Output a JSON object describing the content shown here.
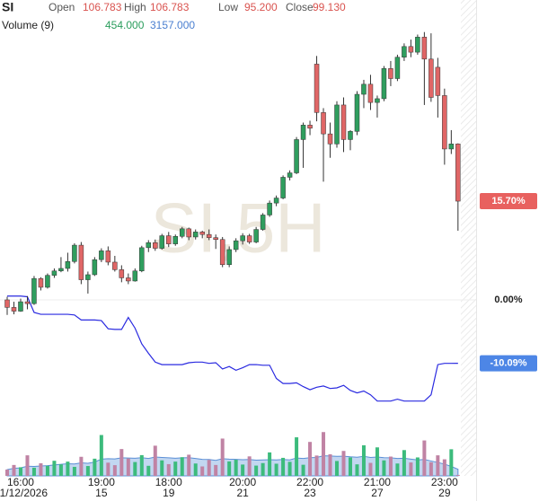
{
  "chart_data": {
    "type": "candlestick",
    "symbol": "SI",
    "watermark": "SI,5H",
    "quote": [
      {
        "name": "Open",
        "value": 106.783
      },
      {
        "name": "High",
        "value": 106.783
      },
      {
        "name": "Low",
        "value": 95.2,
        "label": "95.200"
      },
      {
        "name": "Close",
        "value": 99.13,
        "label": "99.130"
      }
    ],
    "volume_title": "Volume (9)",
    "categories": [
      null,
      null,
      "16:00",
      null,
      null,
      null,
      null,
      null,
      null,
      null,
      null,
      null,
      null,
      null,
      "19:00",
      null,
      null,
      null,
      null,
      null,
      null,
      null,
      null,
      null,
      "18:00",
      null,
      null,
      null,
      null,
      null,
      null,
      null,
      null,
      null,
      null,
      "20:00",
      null,
      null,
      null,
      null,
      null,
      null,
      null,
      null,
      null,
      "22:00",
      null,
      null,
      null,
      null,
      null,
      null,
      null,
      null,
      null,
      "21:00",
      null,
      null,
      null,
      null,
      null,
      null,
      null,
      null,
      null,
      "23:00",
      null,
      null
    ],
    "dates": [
      null,
      null,
      "01/12/2026",
      null,
      null,
      null,
      null,
      null,
      null,
      null,
      null,
      null,
      null,
      null,
      "15",
      null,
      null,
      null,
      null,
      null,
      null,
      null,
      null,
      null,
      "19",
      null,
      null,
      null,
      null,
      null,
      null,
      null,
      null,
      null,
      null,
      "21",
      null,
      null,
      null,
      null,
      null,
      null,
      null,
      null,
      null,
      "23",
      null,
      null,
      null,
      null,
      null,
      null,
      null,
      null,
      null,
      "27",
      null,
      null,
      null,
      null,
      null,
      null,
      null,
      null,
      null,
      "29",
      null,
      null
    ],
    "candles": [
      [
        0,
        0.5,
        -2.4,
        -1.2
      ],
      [
        -1.2,
        -0.3,
        -2.3,
        -1.8
      ],
      [
        -1.8,
        0.2,
        -1.9,
        -0.3
      ],
      [
        -0.3,
        0.6,
        -1.5,
        -0.6
      ],
      [
        -0.6,
        3.8,
        -0.8,
        3.4
      ],
      [
        3.4,
        3.6,
        1.5,
        2.0
      ],
      [
        2.0,
        4.2,
        1.8,
        3.9
      ],
      [
        3.9,
        5.0,
        3.5,
        4.6
      ],
      [
        4.6,
        6.8,
        4.4,
        5.0
      ],
      [
        5.0,
        7.5,
        4.5,
        6.1
      ],
      [
        6.1,
        9.0,
        5.8,
        8.7
      ],
      [
        8.7,
        9.2,
        2.5,
        3.2
      ],
      [
        3.2,
        4.5,
        1.0,
        4.0
      ],
      [
        4.0,
        6.8,
        3.8,
        6.4
      ],
      [
        6.4,
        8.2,
        6.0,
        7.8
      ],
      [
        7.8,
        8.5,
        5.5,
        6.0
      ],
      [
        6.0,
        7.0,
        4.5,
        4.8
      ],
      [
        4.8,
        5.5,
        2.8,
        3.5
      ],
      [
        3.5,
        4.2,
        2.5,
        3.0
      ],
      [
        3.0,
        5.0,
        2.9,
        4.6
      ],
      [
        4.6,
        8.6,
        4.4,
        8.3
      ],
      [
        8.3,
        9.5,
        7.6,
        9.1
      ],
      [
        9.1,
        9.6,
        7.8,
        8.2
      ],
      [
        8.2,
        10.5,
        8.0,
        10.2
      ],
      [
        10.2,
        10.8,
        8.4,
        8.9
      ],
      [
        8.9,
        10.4,
        8.6,
        10.1
      ],
      [
        10.1,
        11.6,
        9.8,
        11.3
      ],
      [
        11.3,
        11.5,
        9.5,
        10.0
      ],
      [
        10.0,
        11.2,
        9.6,
        10.8
      ],
      [
        10.8,
        11.0,
        9.8,
        10.4
      ],
      [
        10.4,
        11.2,
        9.5,
        9.9
      ],
      [
        9.9,
        10.4,
        8.1,
        9.6
      ],
      [
        9.6,
        10.0,
        5.2,
        5.6
      ],
      [
        5.6,
        8.5,
        5.2,
        8.0
      ],
      [
        8.0,
        9.8,
        7.6,
        9.4
      ],
      [
        9.4,
        10.6,
        8.8,
        10.2
      ],
      [
        10.2,
        10.5,
        8.9,
        9.2
      ],
      [
        9.2,
        11.6,
        9.0,
        11.2
      ],
      [
        11.2,
        13.8,
        11.0,
        13.5
      ],
      [
        13.5,
        15.8,
        13.2,
        15.4
      ],
      [
        15.4,
        16.6,
        14.9,
        16.2
      ],
      [
        16.2,
        19.8,
        16.0,
        19.5
      ],
      [
        19.5,
        20.6,
        19.0,
        20.2
      ],
      [
        20.2,
        25.9,
        20.0,
        25.5
      ],
      [
        25.5,
        28.2,
        21.0,
        27.8
      ],
      [
        27.8,
        28.5,
        26.2,
        27.3
      ],
      [
        37.5,
        38.8,
        28.4,
        29.8
      ],
      [
        29.8,
        30.5,
        18.8,
        26.4
      ],
      [
        26.4,
        28.2,
        22.6,
        24.8
      ],
      [
        24.8,
        31.6,
        24.2,
        31.0
      ],
      [
        31.0,
        32.2,
        23.5,
        25.5
      ],
      [
        25.5,
        27.0,
        23.8,
        26.8
      ],
      [
        26.8,
        33.2,
        26.2,
        32.7
      ],
      [
        32.7,
        35.0,
        30.5,
        34.3
      ],
      [
        34.3,
        35.8,
        30.2,
        31.4
      ],
      [
        31.4,
        32.5,
        29.0,
        32.0
      ],
      [
        32.0,
        37.2,
        31.6,
        36.8
      ],
      [
        36.8,
        38.0,
        34.0,
        35.2
      ],
      [
        35.2,
        39.0,
        34.8,
        38.6
      ],
      [
        38.6,
        40.8,
        38.0,
        40.3
      ],
      [
        40.3,
        41.4,
        38.6,
        39.4
      ],
      [
        39.4,
        42.2,
        39.0,
        41.8
      ],
      [
        41.8,
        42.6,
        31.0,
        38.3
      ],
      [
        38.3,
        42.4,
        31.5,
        32.2
      ],
      [
        37.0,
        38.5,
        29.0,
        32.5
      ],
      [
        32.5,
        33.6,
        21.5,
        24.0
      ],
      [
        24.0,
        27.0,
        23.2,
        24.8
      ],
      [
        24.8,
        24.9,
        11.0,
        15.7
      ]
    ],
    "up_color": "#2f9e5e",
    "down_color": "#e06666",
    "indicator": {
      "color": "#2a2ae0",
      "values": [
        0.6,
        0.6,
        0.6,
        0.5,
        -2.0,
        -2.3,
        -2.3,
        -2.3,
        -2.3,
        -2.3,
        -2.4,
        -3.2,
        -3.2,
        -3.2,
        -3.3,
        -4.6,
        -4.7,
        -4.7,
        -2.8,
        -4.5,
        -7.0,
        -8.5,
        -9.9,
        -10.3,
        -10.3,
        -10.3,
        -10.3,
        -10.0,
        -9.9,
        -9.9,
        -10.1,
        -10.0,
        -11.0,
        -10.6,
        -11.2,
        -10.8,
        -10.3,
        -10.3,
        -10.4,
        -10.4,
        -12.5,
        -13.3,
        -13.3,
        -13.2,
        -13.8,
        -14.3,
        -13.9,
        -13.7,
        -14.1,
        -14.0,
        -13.6,
        -14.4,
        -14.8,
        -14.5,
        -15.1,
        -16.1,
        -16.1,
        -16.1,
        -15.8,
        -16.1,
        -16.1,
        -16.1,
        -16.1,
        -15.1,
        -10.3,
        -10.1,
        -10.1,
        -10.09
      ]
    },
    "ylim": [
      -18.0,
      47.7
    ],
    "yticks": [
      {
        "value": 0,
        "label": "0.00%"
      }
    ],
    "last_price_label": {
      "value": 15.7,
      "label": "15.70%"
    },
    "indicator_label": {
      "value": -10.09,
      "label": "-10.09%"
    },
    "volume": {
      "up_color": "#3cbb7c",
      "down_color": "#c083a4",
      "values": [
        3000,
        5200,
        4100,
        9800,
        3900,
        6000,
        4800,
        7200,
        5500,
        6800,
        4300,
        9100,
        4700,
        8200,
        19500,
        6300,
        5100,
        12800,
        8300,
        6600,
        9900,
        4800,
        14400,
        7400,
        5600,
        6800,
        8900,
        10100,
        5900,
        4500,
        7600,
        5200,
        17800,
        6900,
        7700,
        5400,
        9300,
        4900,
        6100,
        11200,
        5800,
        8600,
        6700,
        18400,
        5300,
        16200,
        9700,
        20900,
        10300,
        7100,
        11900,
        8800,
        5500,
        14600,
        6200,
        13600,
        7400,
        9200,
        5900,
        12300,
        6400,
        8800,
        16900,
        6500,
        9800,
        7900,
        12700,
        454
      ],
      "value_labels": {
        "67": "454.000"
      }
    },
    "volume_ma": {
      "color": "#5b8fd6",
      "fill": "#b3cdee",
      "values": [
        3000,
        3600,
        3800,
        4600,
        4500,
        4700,
        4900,
        5200,
        5500,
        5800,
        5700,
        6200,
        6000,
        6600,
        8000,
        8200,
        8100,
        8600,
        8500,
        8400,
        8700,
        8300,
        9000,
        8800,
        8600,
        8400,
        8600,
        8700,
        8300,
        7900,
        7800,
        7400,
        8200,
        8000,
        7900,
        7700,
        7800,
        7500,
        7600,
        7700,
        7600,
        7800,
        7600,
        8500,
        8300,
        8700,
        8800,
        9600,
        9500,
        9300,
        9400,
        9100,
        8900,
        9300,
        8800,
        9000,
        8700,
        8600,
        8300,
        8400,
        8000,
        7600,
        7800,
        7100,
        6400,
        5600,
        4500,
        3157
      ],
      "value_labels": {
        "67": "3157.000"
      }
    },
    "volume_ylim": [
      0,
      24000
    ]
  }
}
